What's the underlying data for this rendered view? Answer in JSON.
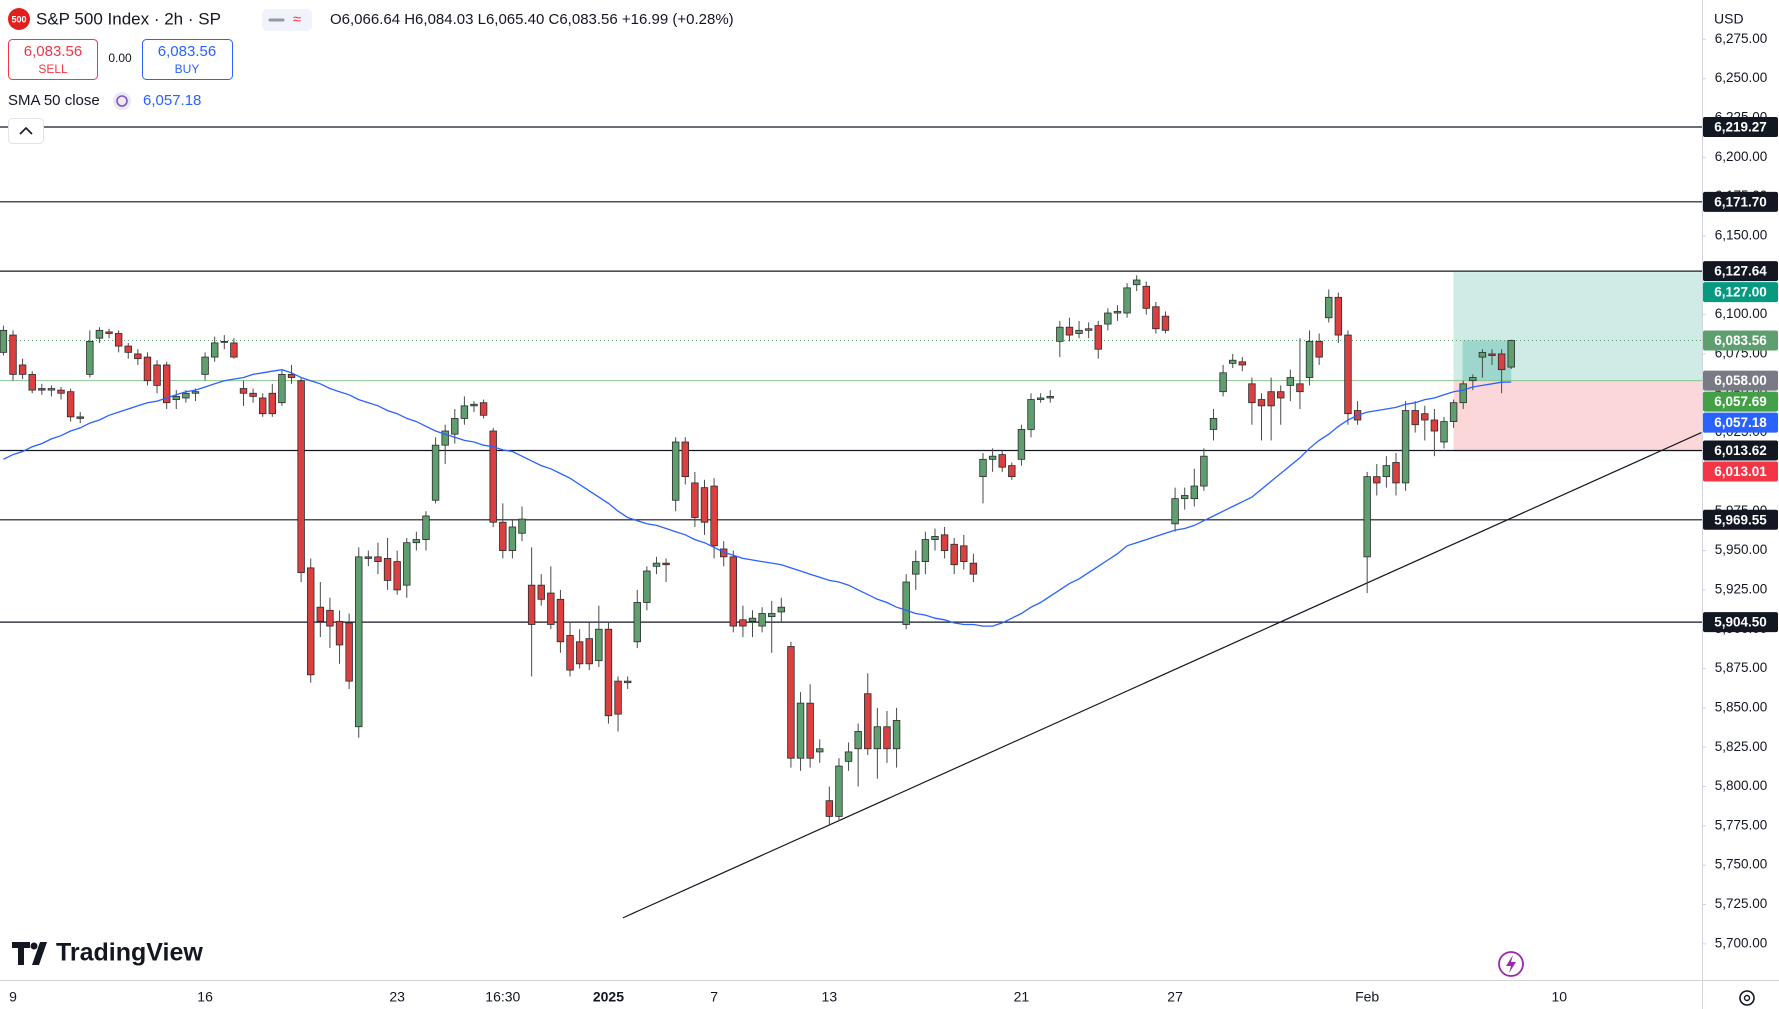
{
  "header": {
    "logo": "500",
    "symbol": "S&P 500 Index · 2h · SP",
    "ohlc": "O6,066.64 H6,084.03 L6,065.40 C6,083.56 +16.99 (+0.28%)",
    "sell": {
      "price": "6,083.56",
      "label": "SELL"
    },
    "spread": "0.00",
    "buy": {
      "price": "6,083.56",
      "label": "BUY"
    },
    "indicator": {
      "name": "SMA 50 close",
      "value": "6,057.18"
    },
    "currency": "USD",
    "brand": "TradingView"
  },
  "chart_data": {
    "type": "candlestick",
    "categories": [
      null,
      "9",
      null,
      null,
      null,
      null,
      null,
      null,
      null,
      null,
      null,
      null,
      null,
      null,
      null,
      null,
      null,
      null,
      null,
      null,
      null,
      "16",
      null,
      null,
      null,
      null,
      null,
      null,
      null,
      null,
      null,
      null,
      null,
      null,
      null,
      null,
      null,
      null,
      null,
      null,
      null,
      "23",
      null,
      null,
      null,
      null,
      null,
      null,
      null,
      null,
      null,
      null,
      "16:30",
      null,
      null,
      null,
      null,
      null,
      null,
      null,
      null,
      null,
      null,
      "2025",
      null,
      null,
      null,
      null,
      null,
      null,
      null,
      null,
      null,
      null,
      "7",
      null,
      null,
      null,
      null,
      null,
      null,
      null,
      null,
      null,
      null,
      null,
      "13",
      null,
      null,
      null,
      null,
      null,
      null,
      null,
      null,
      null,
      null,
      null,
      null,
      null,
      null,
      null,
      null,
      null,
      null,
      null,
      "21",
      null,
      null,
      null,
      null,
      null,
      null,
      null,
      null,
      null,
      null,
      null,
      null,
      null,
      null,
      null,
      "27",
      null,
      null,
      null,
      null,
      null,
      null,
      null,
      null,
      null,
      null,
      null,
      null,
      null,
      null,
      null,
      null,
      null,
      null,
      null,
      "Feb",
      null,
      null,
      null,
      null,
      null,
      null,
      null,
      null,
      null,
      null,
      null,
      null,
      null,
      null,
      null,
      null,
      null,
      null,
      null,
      "10"
    ],
    "open": [
      6076,
      6087,
      6068,
      6062,
      6053,
      6052,
      6052,
      6051,
      6035,
      6062,
      6085,
      6089,
      6088,
      6080,
      6075,
      6073,
      6068,
      6068,
      6046,
      6047,
      6050,
      6062,
      6073,
      6083,
      6082,
      6053,
      6050,
      6047,
      6050,
      6044,
      6062,
      6058,
      5939,
      5914,
      5912,
      5905,
      5904,
      5838,
      5946,
      5946,
      5945,
      5943,
      5928,
      5955,
      5957,
      5982,
      6017,
      6024,
      6034,
      6042,
      6044,
      6026,
      5968,
      5950,
      5961,
      5928,
      5928,
      5923,
      5919,
      5896,
      5892,
      5894,
      5880,
      5900,
      5867,
      5866,
      5892,
      5917,
      5940,
      5942,
      5982,
      6019,
      5993,
      5990,
      5991,
      5951,
      5946,
      5906,
      5905,
      5902,
      5908,
      5911,
      5889,
      5818,
      5853,
      5822,
      5791,
      5781,
      5816,
      5824,
      5859,
      5824,
      5838,
      5824,
      5903,
      5935,
      5943,
      5957,
      5960,
      5954,
      5953,
      5942,
      5997,
      6008,
      6011,
      6004,
      6008,
      6027,
      6046,
      6047,
      6083,
      6092,
      6088,
      6090,
      6093,
      6094,
      6101,
      6101,
      6119,
      6118,
      6105,
      6099,
      5967,
      5983,
      5983,
      5991,
      6027,
      6051,
      6069,
      6070,
      6056,
      6046,
      6051,
      6051,
      6055,
      6056,
      6060,
      6083,
      6098,
      6111,
      6087,
      6039,
      5946,
      5997,
      5997,
      6006,
      5993,
      6039,
      6037,
      6033,
      6019,
      6032,
      6044,
      6058,
      6073,
      6075,
      6075,
      6066.64,
      null,
      null,
      null,
      null,
      null
    ],
    "high": [
      6093,
      6090,
      6072,
      6064,
      6056,
      6055,
      6054,
      6053,
      6038,
      6090,
      6092,
      6091,
      6090,
      6082,
      6078,
      6076,
      6071,
      6070,
      6052,
      6052,
      6053,
      6076,
      6086,
      6087,
      6085,
      6058,
      6053,
      6050,
      6056,
      6065,
      6068,
      6060,
      5945,
      5930,
      5920,
      5912,
      5910,
      5952,
      5950,
      5955,
      5958,
      5950,
      5958,
      5962,
      5975,
      6022,
      6030,
      6040,
      6048,
      6045,
      6046,
      6028,
      5980,
      5970,
      5978,
      5952,
      5935,
      5940,
      5925,
      5905,
      5900,
      5905,
      5915,
      5905,
      5870,
      5870,
      5925,
      5940,
      5946,
      5945,
      6022,
      6022,
      6000,
      5995,
      5996,
      5956,
      5950,
      5915,
      5912,
      5914,
      5918,
      5920,
      5892,
      5860,
      5865,
      5830,
      5800,
      5818,
      5828,
      5840,
      5872,
      5850,
      5848,
      5850,
      5935,
      5950,
      5962,
      5964,
      5965,
      5958,
      5960,
      5948,
      6012,
      6015,
      6014,
      6006,
      6030,
      6050,
      6050,
      6052,
      6096,
      6098,
      6096,
      6095,
      6096,
      6104,
      6106,
      6120,
      6125,
      6121,
      6108,
      6102,
      5990,
      5990,
      6002,
      6015,
      6040,
      6068,
      6075,
      6073,
      6060,
      6050,
      6060,
      6055,
      6065,
      6085,
      6090,
      6088,
      6116,
      6114,
      6090,
      6045,
      6000,
      6005,
      6010,
      6012,
      6045,
      6045,
      6042,
      6040,
      6035,
      6046,
      6058,
      6062,
      6078,
      6078,
      6078,
      6084.03,
      null,
      null,
      null,
      null,
      null
    ],
    "low": [
      6074,
      6058,
      6059,
      6050,
      6049,
      6048,
      6046,
      6032,
      6031,
      6060,
      6082,
      6085,
      6076,
      6072,
      6068,
      6055,
      6050,
      6040,
      6040,
      6044,
      6045,
      6058,
      6070,
      6078,
      6072,
      6042,
      6044,
      6035,
      6035,
      6042,
      6056,
      5930,
      5866,
      5895,
      5888,
      5878,
      5862,
      5831,
      5940,
      5935,
      5925,
      5922,
      5920,
      5950,
      5950,
      5980,
      6005,
      6018,
      6030,
      6038,
      6034,
      5965,
      5945,
      5945,
      5956,
      5870,
      5915,
      5900,
      5885,
      5870,
      5875,
      5874,
      5876,
      5840,
      5835,
      5862,
      5888,
      5912,
      5935,
      5930,
      5975,
      5992,
      5965,
      5960,
      5945,
      5940,
      5898,
      5895,
      5895,
      5898,
      5885,
      5905,
      5812,
      5810,
      5812,
      5815,
      5775,
      5778,
      5810,
      5800,
      5820,
      5805,
      5815,
      5812,
      5900,
      5925,
      5935,
      5950,
      5945,
      5935,
      5938,
      5930,
      5980,
      6000,
      6000,
      5995,
      6004,
      6022,
      6044,
      6044,
      6073,
      6083,
      6085,
      6085,
      6072,
      6090,
      6096,
      6098,
      6115,
      6100,
      6088,
      6088,
      5962,
      5976,
      5978,
      5988,
      6020,
      6048,
      6066,
      6064,
      6030,
      6020,
      6020,
      6030,
      6045,
      6040,
      6055,
      6068,
      6095,
      6082,
      6030,
      6030,
      5923,
      5985,
      5990,
      5985,
      5988,
      6025,
      6020,
      6010,
      6015,
      6028,
      6040,
      6052,
      6060,
      6068,
      6050,
      6065.4,
      null,
      null,
      null,
      null,
      null
    ],
    "close": [
      6090,
      6062,
      6062,
      6052,
      6052,
      6053,
      6050,
      6035,
      6034,
      6083,
      6090,
      6088,
      6080,
      6076,
      6072,
      6058,
      6055,
      6044,
      6048,
      6050,
      6051,
      6073,
      6082,
      6083,
      6073,
      6050,
      6048,
      6037,
      6037,
      6062,
      6060,
      5936,
      5871,
      5905,
      5902,
      5890,
      5867,
      5946,
      5945,
      5943,
      5931,
      5925,
      5955,
      5957,
      5972,
      6017,
      6026,
      6034,
      6042,
      6043,
      6036,
      5968,
      5950,
      5965,
      5970,
      5903,
      5919,
      5903,
      5892,
      5874,
      5878,
      5878,
      5900,
      5845,
      5846,
      5867,
      5917,
      5937,
      5942,
      5941,
      6019,
      5997,
      5971,
      5968,
      5953,
      5946,
      5902,
      5902,
      5907,
      5910,
      5910,
      5914,
      5818,
      5853,
      5818,
      5824,
      5781,
      5813,
      5822,
      5835,
      5824,
      5838,
      5824,
      5842,
      5930,
      5943,
      5957,
      5959,
      5950,
      5941,
      5943,
      5935,
      6008,
      6010,
      6003,
      5997,
      6027,
      6046,
      6047,
      6048,
      6092,
      6087,
      6090,
      6091,
      6078,
      6101,
      6102,
      6117,
      6122,
      6104,
      6091,
      6090,
      5983,
      5985,
      5991,
      6010,
      6034,
      6063,
      6071,
      6068,
      6044,
      6042,
      6042,
      6047,
      6060,
      6051,
      6083,
      6073,
      6111,
      6087,
      6037,
      6033,
      5997,
      5993,
      6004,
      5993,
      6039,
      6030,
      6033,
      6026,
      6032,
      6044,
      6056,
      6060,
      6076,
      6074,
      6065,
      6083.56,
      null,
      null,
      null,
      null,
      null
    ],
    "up_color": "#5f9f6f",
    "down_color": "#d9403f",
    "sma": [
      6008,
      6011,
      6013,
      6016,
      6018,
      6021,
      6023,
      6026,
      6028,
      6031,
      6033,
      6036,
      6038,
      6040,
      6042,
      6044,
      6045,
      6047,
      6049,
      6051,
      6052,
      6054,
      6056,
      6058,
      6059,
      6060,
      6062,
      6063,
      6064,
      6065,
      6063,
      6060,
      6058,
      6056,
      6053,
      6051,
      6049,
      6046,
      6044,
      6042,
      6039,
      6037,
      6034,
      6032,
      6029,
      6026,
      6024,
      6022,
      6020,
      6019,
      6017,
      6016,
      6014,
      6013,
      6010,
      6007,
      6004,
      6002,
      5999,
      5996,
      5992,
      5988,
      5984,
      5980,
      5975,
      5971,
      5969,
      5967,
      5966,
      5964,
      5962,
      5960,
      5957,
      5955,
      5952,
      5949,
      5947,
      5945,
      5944,
      5943,
      5942,
      5941,
      5939,
      5937,
      5935,
      5933,
      5931,
      5930,
      5928,
      5925,
      5922,
      5919,
      5917,
      5914,
      5912,
      5910,
      5909,
      5907,
      5906,
      5904,
      5903,
      5903,
      5902,
      5902,
      5904,
      5907,
      5910,
      5914,
      5917,
      5921,
      5925,
      5929,
      5932,
      5936,
      5940,
      5944,
      5948,
      5953,
      5955,
      5957,
      5959,
      5961,
      5963,
      5964,
      5966,
      5969,
      5972,
      5975,
      5978,
      5981,
      5984,
      5989,
      5994,
      5999,
      6004,
      6009,
      6015,
      6020,
      6024,
      6029,
      6033,
      6036,
      6038,
      6039,
      6040,
      6041,
      6043,
      6044,
      6046,
      6047,
      6049,
      6051,
      6052,
      6054,
      6055,
      6056,
      6057,
      6057.18,
      null,
      null,
      null,
      null,
      null
    ],
    "sma_color": "#2962ff",
    "ylim": [
      5677,
      6300
    ],
    "yticks": [
      {
        "value": 6275,
        "label": "6,275.00"
      },
      {
        "value": 6250,
        "label": "6,250.00"
      },
      {
        "value": 6225,
        "label": "6,225.00"
      },
      {
        "value": 6200,
        "label": "6,200.00"
      },
      {
        "value": 6175,
        "label": "6,175.00"
      },
      {
        "value": 6150,
        "label": "6,150.00"
      },
      {
        "value": 6125,
        "label": "6,125.00"
      },
      {
        "value": 6100,
        "label": "6,100.00"
      },
      {
        "value": 6075,
        "label": "6,075.00"
      },
      {
        "value": 6050,
        "label": "6,050.00"
      },
      {
        "value": 6025,
        "label": "6,025.00"
      },
      {
        "value": 6000,
        "label": "6,000.00"
      },
      {
        "value": 5975,
        "label": "5,975.00"
      },
      {
        "value": 5950,
        "label": "5,950.00"
      },
      {
        "value": 5925,
        "label": "5,925.00"
      },
      {
        "value": 5900,
        "label": "5,900.00"
      },
      {
        "value": 5875,
        "label": "5,875.00"
      },
      {
        "value": 5850,
        "label": "5,850.00"
      },
      {
        "value": 5825,
        "label": "5,825.00"
      },
      {
        "value": 5800,
        "label": "5,800.00"
      },
      {
        "value": 5775,
        "label": "5,775.00"
      },
      {
        "value": 5750,
        "label": "5,750.00"
      },
      {
        "value": 5725,
        "label": "5,725.00"
      },
      {
        "value": 5700,
        "label": "5,700.00"
      }
    ],
    "levels": [
      {
        "value": 6219.27,
        "label": "6,219.27"
      },
      {
        "value": 6171.7,
        "label": "6,171.70"
      },
      {
        "value": 6127.64,
        "label": "6,127.64"
      },
      {
        "value": 6013.62,
        "label": "6,013.62"
      },
      {
        "value": 5969.55,
        "label": "5,969.55"
      },
      {
        "value": 5904.5,
        "label": "5,904.50"
      }
    ],
    "position": {
      "start": 151,
      "target": {
        "value": 6127.0,
        "label": "6,127.00",
        "color": "#089981"
      },
      "entry": {
        "value": 6058.0,
        "label": "6,058.00",
        "color": "#787b86"
      },
      "stop": {
        "value": 6013.01,
        "label": "6,013.01",
        "color": "#f23645"
      }
    },
    "last": {
      "value": 6083.56,
      "label": "6,083.56",
      "color": "#5f9f6f"
    },
    "marker": {
      "value": 6057.69,
      "label": "6,057.69",
      "color": "#43a047"
    },
    "sma_last": {
      "value": 6057.18,
      "label": "6,057.18",
      "color": "#2962ff"
    },
    "trendline": {
      "x": [
        64.5,
        176.8
      ],
      "y": [
        5716.5,
        6025
      ]
    }
  }
}
